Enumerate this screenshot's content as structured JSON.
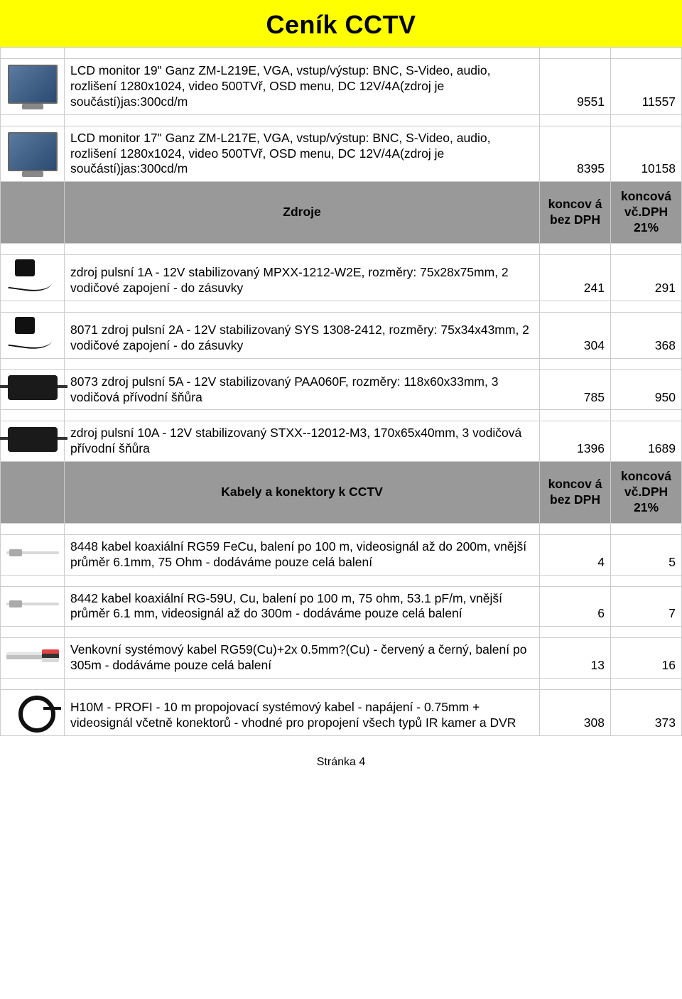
{
  "title": "Ceník CCTV",
  "footer": "Stránka 4",
  "section_header_col1": "koncov á bez DPH",
  "section_header_col2": "koncová vč.DPH 21%",
  "rows": [
    {
      "icon": "monitor",
      "desc": "LCD monitor 19\" Ganz ZM-L219E, VGA, vstup/výstup: BNC, S-Video, audio, rozlišení 1280x1024, video 500TVř, OSD menu, DC 12V/4A(zdroj je součástí)jas:300cd/m",
      "p1": "9551",
      "p2": "11557"
    },
    {
      "icon": "monitor",
      "desc": "LCD monitor 17\" Ganz ZM-L217E, VGA, vstup/výstup: BNC, S-Video, audio, rozlišení 1280x1024, video 500TVř, OSD menu, DC 12V/4A(zdroj je součástí)jas:300cd/m",
      "p1": "8395",
      "p2": "10158"
    }
  ],
  "section1": {
    "title": "Zdroje",
    "rows": [
      {
        "icon": "psu-plug",
        "desc": "zdroj pulsní 1A - 12V stabilizovaný MPXX-1212-W2E, rozměry: 75x28x75mm, 2 vodičové zapojení - do zásuvky",
        "p1": "241",
        "p2": "291"
      },
      {
        "icon": "psu-plug",
        "desc": "8071 zdroj pulsní 2A - 12V stabilizovaný SYS 1308-2412, rozměry: 75x34x43mm, 2 vodičové zapojení - do zásuvky",
        "p1": "304",
        "p2": "368"
      },
      {
        "icon": "psu-brick",
        "desc": "8073 zdroj pulsní 5A - 12V stabilizovaný PAA060F, rozměry: 118x60x33mm, 3 vodičová přívodní šňůra",
        "p1": "785",
        "p2": "950"
      },
      {
        "icon": "psu-brick",
        "desc": "zdroj pulsní 10A - 12V stabilizovaný STXX--12012-M3, 170x65x40mm, 3 vodičová přívodní šňůra",
        "p1": "1396",
        "p2": "1689"
      }
    ]
  },
  "section2": {
    "title": "Kabely a konektory k CCTV",
    "rows": [
      {
        "icon": "cable",
        "desc": "8448 kabel koaxiální RG59 FeCu, balení po 100 m, videosignál až do 200m, vnější průměr 6.1mm, 75 Ohm - dodáváme pouze celá balení",
        "p1": "4",
        "p2": "5"
      },
      {
        "icon": "cable",
        "desc": "8442 kabel koaxiální RG-59U, Cu, balení po 100 m, 75 ohm, 53.1 pF/m, vnější průměr 6.1 mm, videosignál až do 300m - dodáváme pouze celá balení",
        "p1": "6",
        "p2": "7"
      },
      {
        "icon": "cable-multi",
        "desc": "Venkovní systémový kabel RG59(Cu)+2x 0.5mm?(Cu) - červený a černý, balení po 305m - dodáváme pouze celá balení",
        "p1": "13",
        "p2": "16"
      },
      {
        "icon": "coil",
        "desc": "H10M - PROFI - 10 m propojovací systémový kabel - napájení - 0.75mm + videosignál včetně konektorů - vhodné pro propojení všech typů IR kamer a DVR",
        "p1": "308",
        "p2": "373"
      }
    ]
  }
}
